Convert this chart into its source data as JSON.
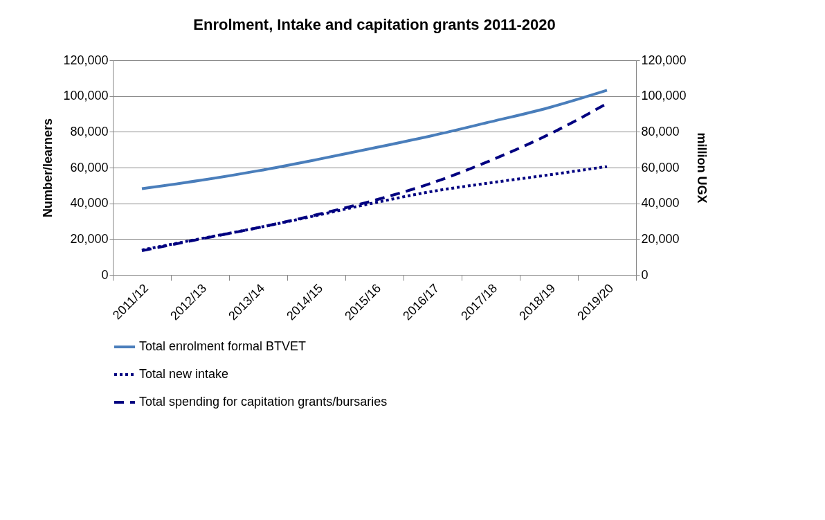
{
  "chart_data": {
    "type": "line",
    "title": "Enrolment, Intake and capitation grants 2011-2020",
    "ylabel": "Number/learners",
    "y2label": "million UGX",
    "categories": [
      "2011/12",
      "2012/13",
      "2013/14",
      "2014/15",
      "2015/16",
      "2016/17",
      "2017/18",
      "2018/19",
      "2019/20"
    ],
    "series": [
      {
        "name": "Total enrolment formal BTVET",
        "color": "#4a7ebb",
        "line_style": "solid",
        "values": [
          48200,
          52800,
          58200,
          64400,
          71000,
          77900,
          85600,
          93500,
          103200
        ]
      },
      {
        "name": "Total new intake",
        "color": "#000080",
        "line_style": "dotted",
        "values": [
          13900,
          20200,
          26400,
          33200,
          40300,
          46700,
          51500,
          55900,
          60600
        ]
      },
      {
        "name": "Total spending for capitation grants/bursaries",
        "color": "#000080",
        "line_style": "dashed",
        "axis": "y2",
        "values": [
          13500,
          20000,
          26400,
          33600,
          41700,
          51500,
          64000,
          78500,
          95800
        ]
      }
    ],
    "ylim": [
      0,
      120000
    ],
    "yticks": [
      0,
      {
        "value": 20000,
        "label": "20,000"
      },
      {
        "value": 40000,
        "label": "40,000"
      },
      {
        "value": 60000,
        "label": "60,000"
      },
      {
        "value": 80000,
        "label": "80,000"
      },
      {
        "value": 100000,
        "label": "100,000"
      },
      {
        "value": 120000,
        "label": "120,000"
      }
    ],
    "y2lim": [
      0,
      120000
    ],
    "y2ticks": [
      0,
      {
        "value": 20000,
        "label": "20,000"
      },
      {
        "value": 40000,
        "label": "40,000"
      },
      {
        "value": 60000,
        "label": "60,000"
      },
      {
        "value": 80000,
        "label": "80,000"
      },
      {
        "value": 100000,
        "label": "100,000"
      },
      {
        "value": 120000,
        "label": "120,000"
      }
    ],
    "grid": "y",
    "legend": "bottom",
    "marker": "none"
  }
}
